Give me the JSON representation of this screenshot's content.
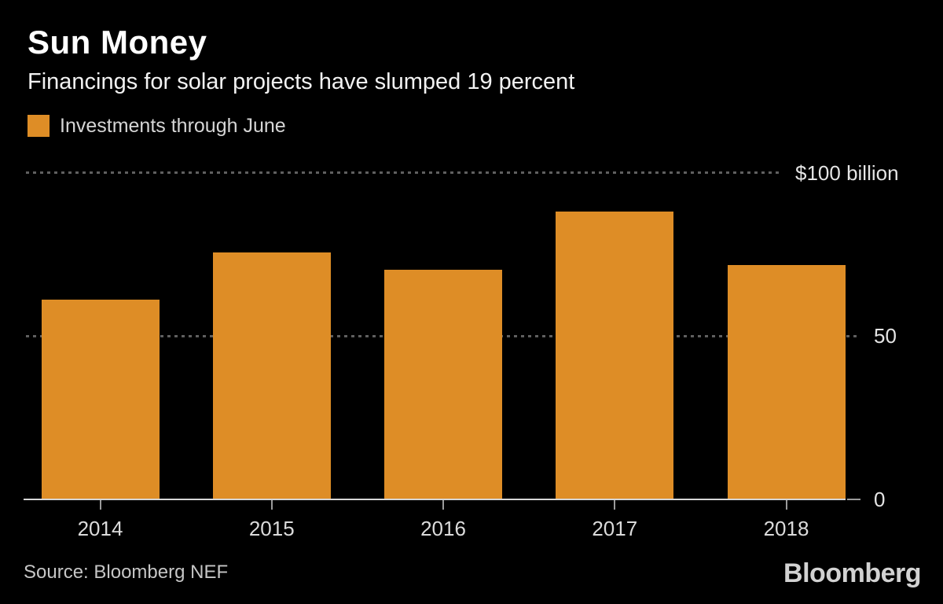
{
  "header": {
    "title": "Sun Money",
    "subtitle": "Financings for solar projects have slumped 19 percent"
  },
  "legend": {
    "label": "Investments through June",
    "swatch_color": "#de8d26"
  },
  "chart_data": {
    "type": "bar",
    "title": "Sun Money",
    "subtitle": "Financings for solar projects have slumped 19 percent",
    "series_name": "Investments through June",
    "categories": [
      "2014",
      "2015",
      "2016",
      "2017",
      "2018"
    ],
    "values": [
      61,
      75.5,
      70,
      88,
      71.5
    ],
    "unit": "$ billion",
    "xlabel": "",
    "ylabel": "",
    "ylim": [
      0,
      100
    ],
    "grid": "horizontal dotted at 50 and 100, solid baseline at 0",
    "legend_position": "top-left",
    "bar_color": "#de8d26",
    "gridlines": [
      {
        "value": 100,
        "label": "$100 billion"
      },
      {
        "value": 50,
        "label": "50"
      },
      {
        "value": 0,
        "label": "0"
      }
    ]
  },
  "footer": {
    "source": "Source: Bloomberg NEF",
    "logo": "Bloomberg"
  },
  "colors": {
    "background": "#000000",
    "bar": "#de8d26",
    "title_text": "#ffffff",
    "axis_text": "#dbdbdb",
    "gridline": "#5f5f5f",
    "baseline": "#d6d6d6"
  }
}
